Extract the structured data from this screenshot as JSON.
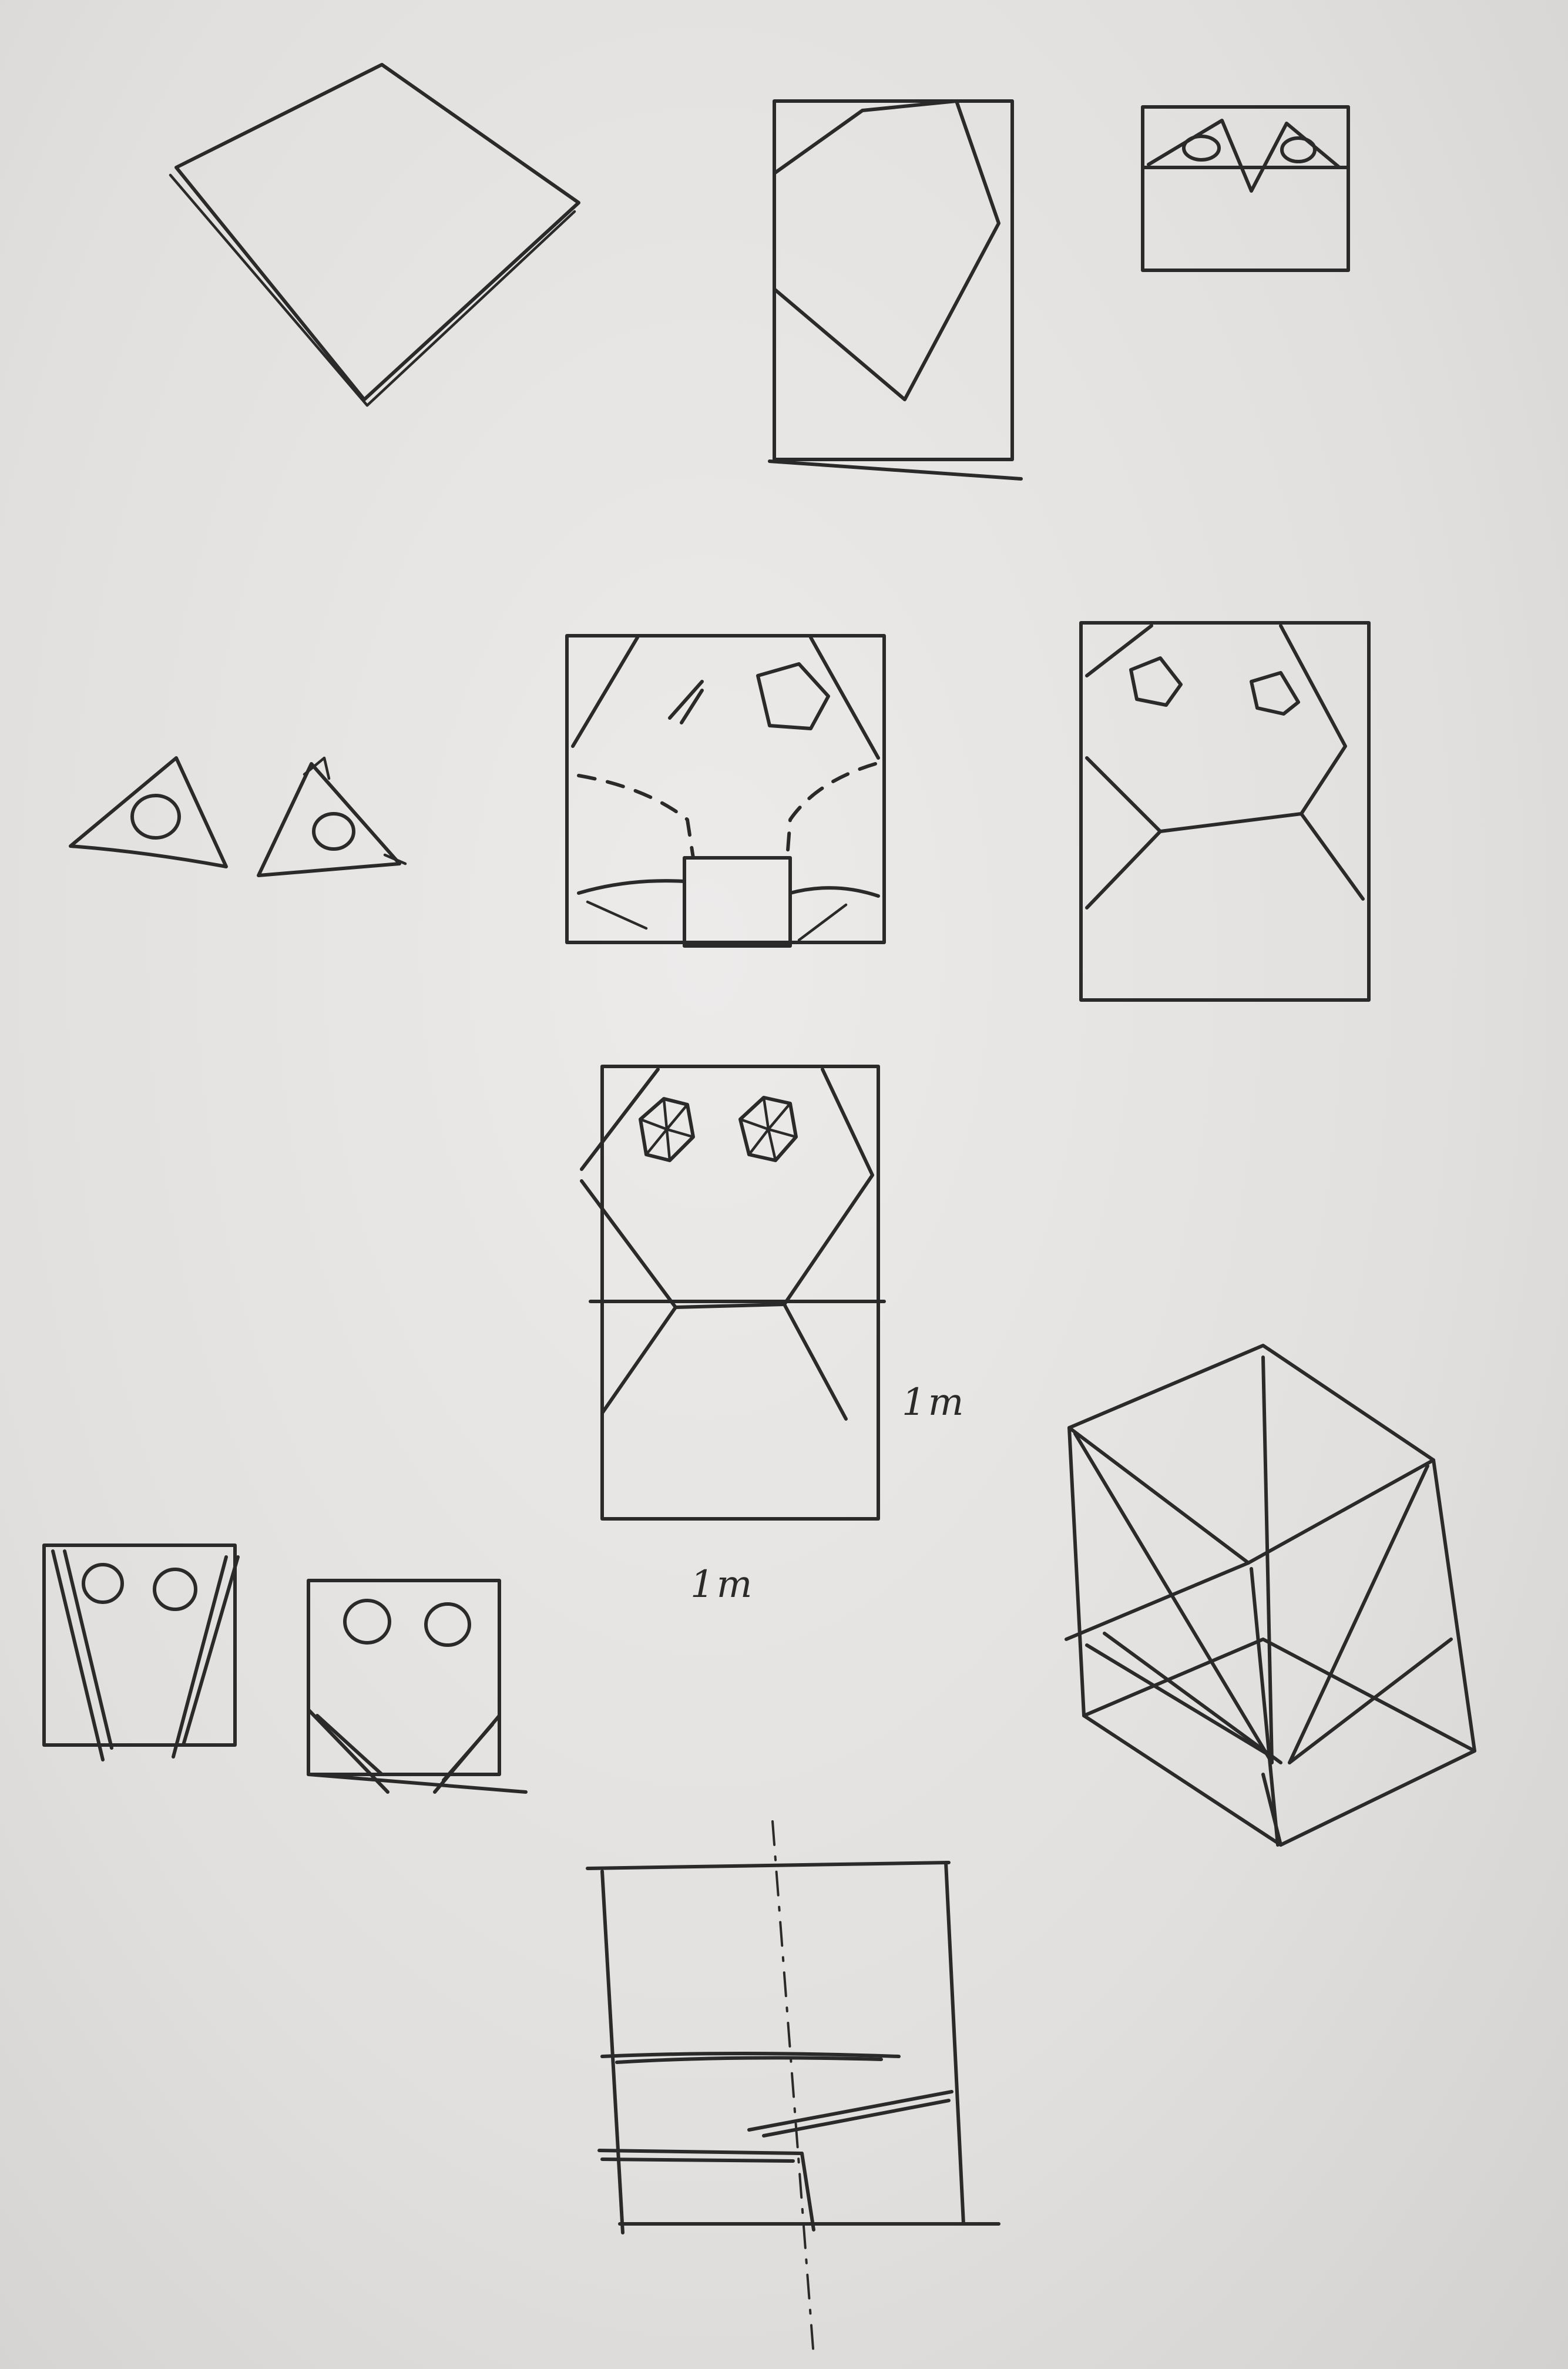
{
  "annotations": {
    "height_label": "1m",
    "width_label": "1m"
  },
  "colors": {
    "paper": "#e3e1df",
    "ink": "#2a2a2a"
  }
}
